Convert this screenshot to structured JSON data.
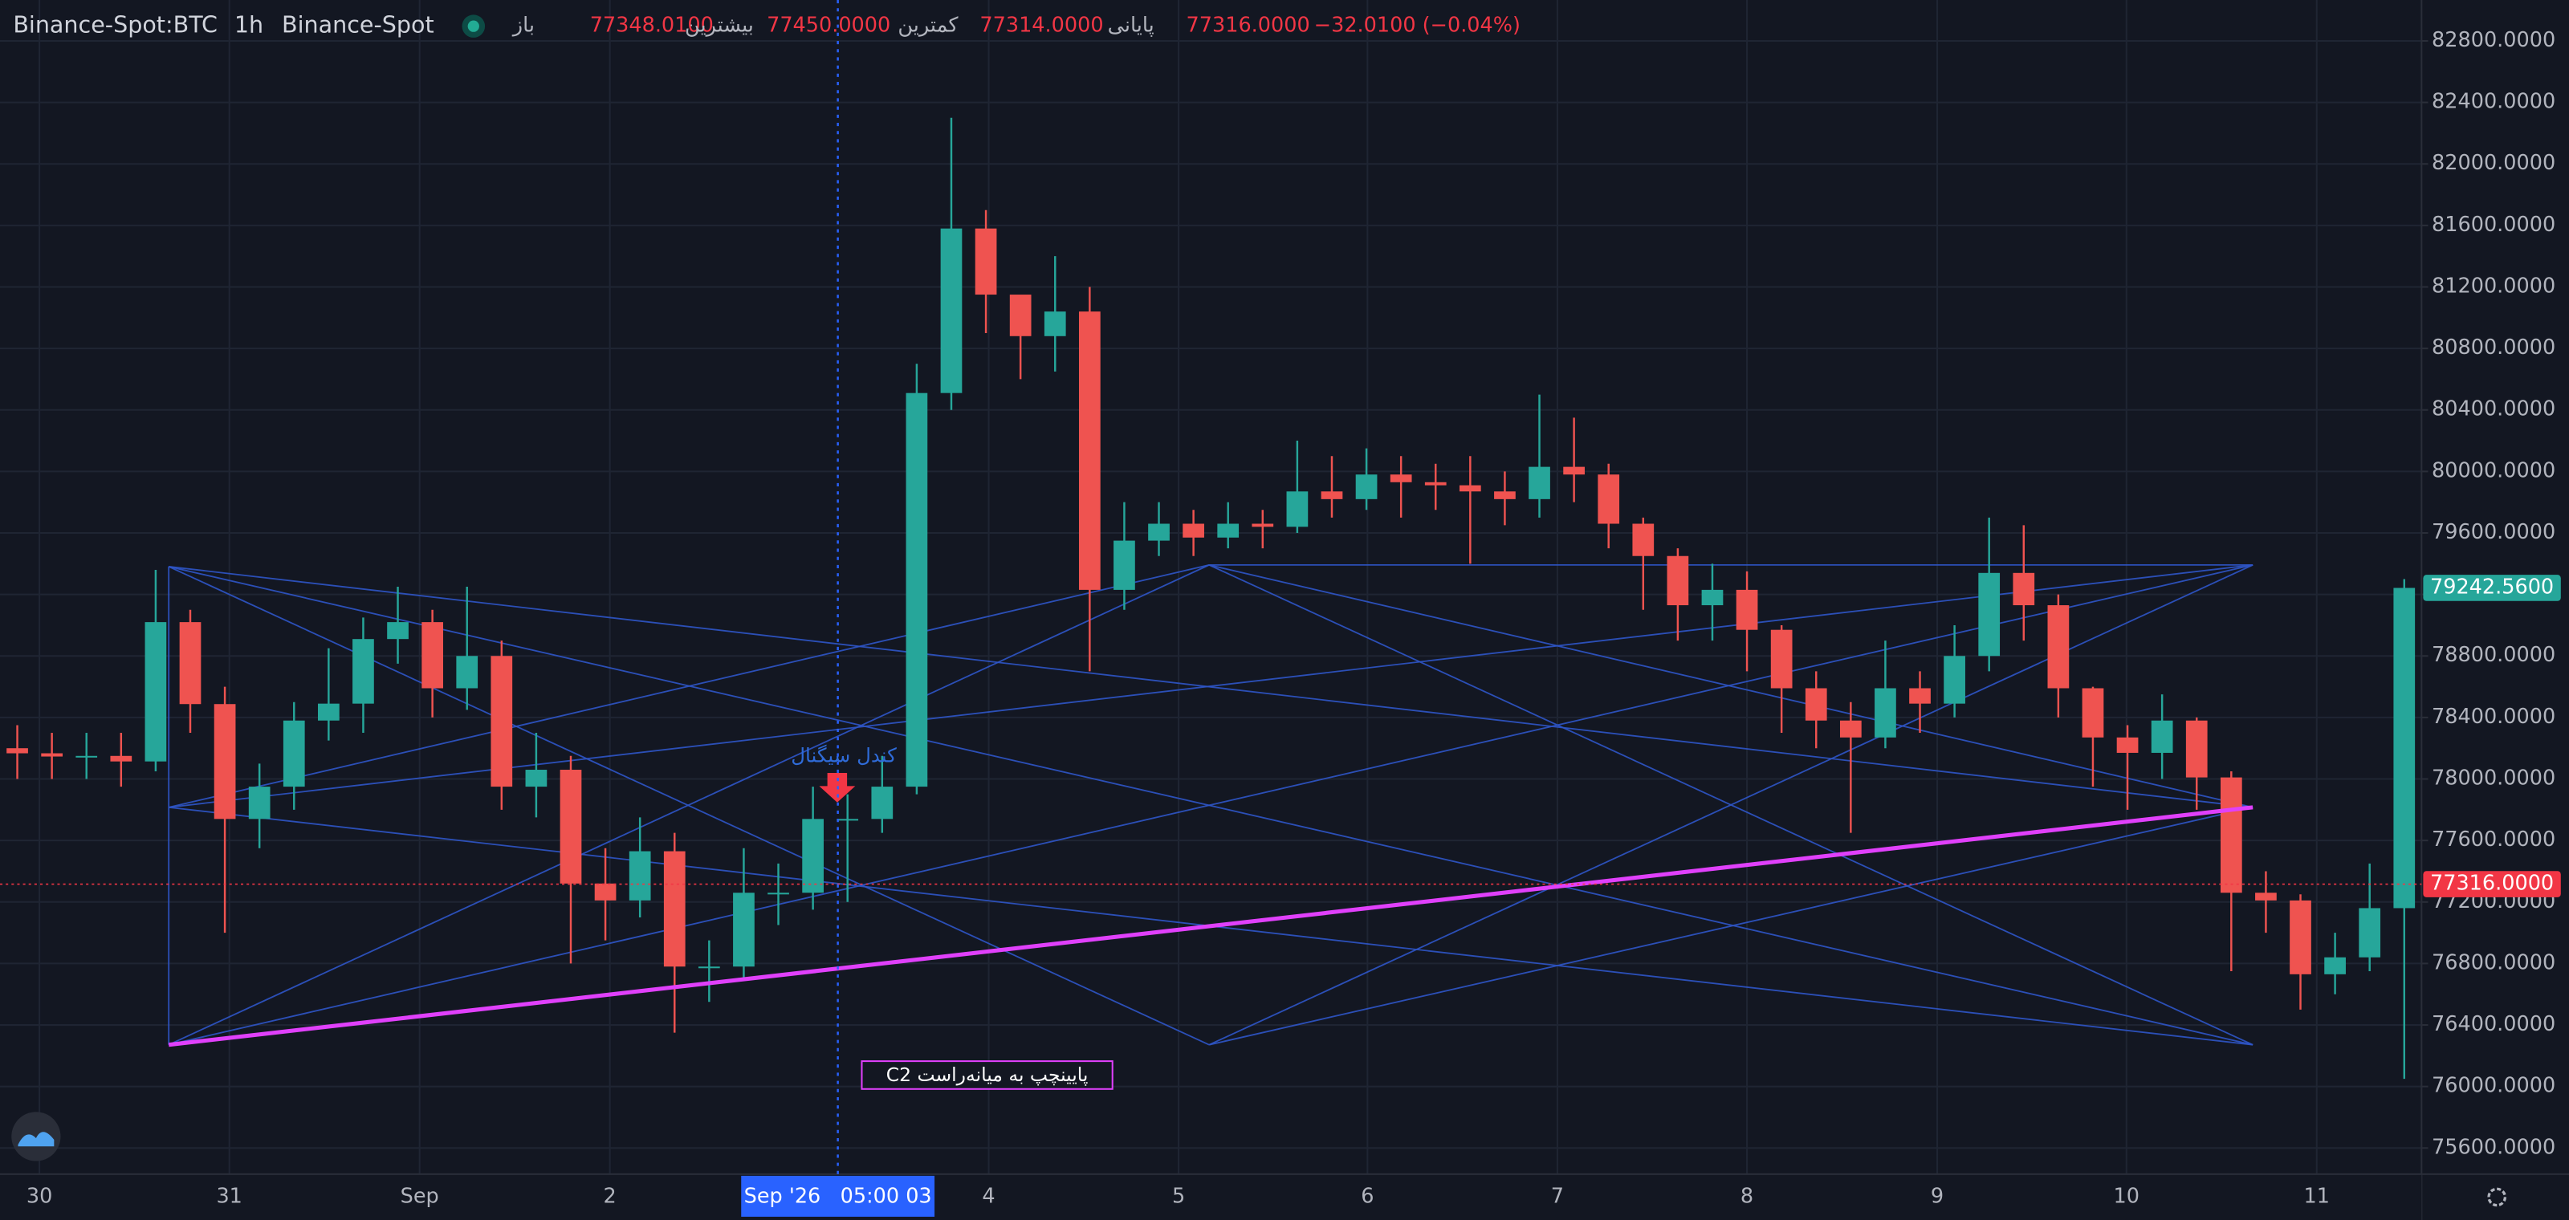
{
  "header": {
    "symbol": "Binance-Spot:BTC",
    "interval": "1h",
    "exchange": "Binance-Spot",
    "open_label": "باز",
    "open": "77348.0100",
    "high_label": "بیشترین",
    "high": "77450.0000",
    "low_label": "کمترین",
    "low": "77314.0000",
    "close_label": "پایانی",
    "close": "77316.0000",
    "change": "−32.0100 (−0.04%)"
  },
  "annotations": {
    "signal": "کندل سیگنال",
    "box": "پایینچپ به میانه‌راست C2"
  },
  "chart_data": {
    "type": "candlestick",
    "up_color": "#26a69a",
    "down_color": "#ef5350",
    "candles": {
      "open": [
        78200,
        78167,
        78146,
        78150,
        78114,
        79020,
        78487,
        77740,
        77950,
        78380,
        78490,
        78910,
        79020,
        78590,
        78800,
        77950,
        78060,
        77320,
        77210,
        77530,
        76780,
        76780,
        77260,
        77260,
        77740,
        77740,
        77950,
        80510,
        81580,
        81150,
        80880,
        81040,
        79230,
        79550,
        79660,
        79570,
        79660,
        79640,
        79870,
        79820,
        79980,
        79930,
        79910,
        79870,
        79820,
        80030,
        79980,
        79660,
        79450,
        79130,
        79230,
        78970,
        78590,
        78380,
        78270,
        78590,
        78490,
        78800,
        79340,
        79130,
        78590,
        78270,
        78170,
        78380,
        78010,
        77260,
        77210,
        76730,
        76840,
        77160
      ],
      "high": [
        78350,
        78300,
        78300,
        78300,
        79360,
        79100,
        78600,
        78100,
        78500,
        78850,
        79050,
        79250,
        79100,
        79250,
        78900,
        78300,
        78150,
        77550,
        77750,
        77650,
        76950,
        77550,
        77450,
        77950,
        77900,
        78150,
        80700,
        82300,
        81700,
        81100,
        81400,
        81200,
        79800,
        79800,
        79750,
        79800,
        79750,
        80200,
        80100,
        80150,
        80100,
        80050,
        80100,
        80000,
        80500,
        80350,
        80050,
        79700,
        79500,
        79400,
        79350,
        79000,
        78700,
        78500,
        78900,
        78700,
        79000,
        79700,
        79650,
        79200,
        78600,
        78350,
        78550,
        78400,
        78050,
        77400,
        77250,
        77000,
        77450,
        79300
      ],
      "low": [
        78000,
        78000,
        78000,
        77950,
        78050,
        78300,
        77000,
        77550,
        77800,
        78250,
        78300,
        78750,
        78400,
        78450,
        77800,
        77750,
        76800,
        76950,
        77100,
        76350,
        76550,
        76700,
        77050,
        77150,
        77200,
        77650,
        77900,
        80400,
        80900,
        80600,
        80650,
        78700,
        79100,
        79450,
        79450,
        79500,
        79500,
        79600,
        79700,
        79750,
        79700,
        79750,
        79400,
        79650,
        79700,
        79800,
        79500,
        79100,
        78900,
        78900,
        78700,
        78300,
        78200,
        77650,
        78200,
        78300,
        78400,
        78700,
        78900,
        78400,
        77950,
        77800,
        78000,
        77800,
        76750,
        77000,
        76500,
        76600,
        76750,
        76050
      ],
      "close": [
        78167,
        78146,
        78150,
        78114,
        79020,
        78487,
        77740,
        77950,
        78380,
        78490,
        78910,
        79020,
        78590,
        78800,
        77950,
        78060,
        77320,
        77210,
        77530,
        76780,
        76780,
        77260,
        77260,
        77740,
        77740,
        77950,
        80510,
        81580,
        81150,
        80880,
        81040,
        79230,
        79550,
        79660,
        79570,
        79660,
        79640,
        79870,
        79820,
        79980,
        79930,
        79910,
        79870,
        79820,
        80030,
        79980,
        79660,
        79450,
        79130,
        79230,
        78970,
        78590,
        78380,
        78270,
        78590,
        78490,
        78800,
        79340,
        79130,
        78590,
        78270,
        78170,
        78380,
        78010,
        77260,
        77210,
        76730,
        76840,
        77160,
        79242.56
      ]
    },
    "xlim": [
      -0.5,
      69.5
    ],
    "xticks": [
      {
        "value": 0.64,
        "label": "30"
      },
      {
        "value": 6.13,
        "label": "31"
      },
      {
        "value": 11.63,
        "label": "Sep"
      },
      {
        "value": 17.13,
        "label": "2"
      },
      {
        "value": 28.08,
        "label": "4"
      },
      {
        "value": 33.57,
        "label": "5"
      },
      {
        "value": 39.03,
        "label": "6"
      },
      {
        "value": 44.52,
        "label": "7"
      },
      {
        "value": 50.0,
        "label": "8"
      },
      {
        "value": 55.5,
        "label": "9"
      },
      {
        "value": 60.97,
        "label": "10"
      },
      {
        "value": 66.47,
        "label": "11"
      }
    ],
    "ylim": [
      75430,
      83066
    ],
    "yticks": [
      {
        "value": 82800,
        "label": "82800.0000"
      },
      {
        "value": 82400,
        "label": "82400.0000"
      },
      {
        "value": 82000,
        "label": "82000.0000"
      },
      {
        "value": 81600,
        "label": "81600.0000"
      },
      {
        "value": 81200,
        "label": "81200.0000"
      },
      {
        "value": 80800,
        "label": "80800.0000"
      },
      {
        "value": 80400,
        "label": "80400.0000"
      },
      {
        "value": 80000,
        "label": "80000.0000"
      },
      {
        "value": 79600,
        "label": "79600.0000"
      },
      {
        "value": 79200,
        "label": "79200.0000"
      },
      {
        "value": 78800,
        "label": "78800.0000"
      },
      {
        "value": 78400,
        "label": "78400.0000"
      },
      {
        "value": 78000,
        "label": "78000.0000"
      },
      {
        "value": 77600,
        "label": "77600.0000"
      },
      {
        "value": 77200,
        "label": "77200.0000"
      },
      {
        "value": 76800,
        "label": "76800.0000"
      },
      {
        "value": 76400,
        "label": "76400.0000"
      },
      {
        "value": 76000,
        "label": "76000.0000"
      },
      {
        "value": 75600,
        "label": "75600.0000"
      }
    ],
    "last_price": {
      "value": 79242.56,
      "label": "79242.5600"
    },
    "close_line": {
      "value": 77316,
      "label": "77316.0000"
    },
    "crosshair": {
      "value": 23.72,
      "label": "Sep '26   05:00 03"
    },
    "grid": true
  }
}
